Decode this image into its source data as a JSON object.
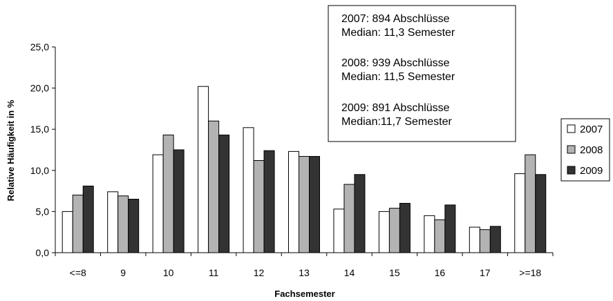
{
  "chart_data": {
    "type": "bar",
    "xlabel": "Fachsemester",
    "ylabel": "Relative Häufigkeit in %",
    "categories": [
      "<=8",
      "9",
      "10",
      "11",
      "12",
      "13",
      "14",
      "15",
      "16",
      "17",
      ">=18"
    ],
    "series": [
      {
        "name": "2007",
        "color": "#ffffff",
        "values": [
          5.0,
          7.4,
          11.9,
          20.2,
          15.2,
          12.3,
          5.3,
          5.0,
          4.5,
          3.1,
          9.6
        ]
      },
      {
        "name": "2008",
        "color": "#b3b3b3",
        "values": [
          7.0,
          6.9,
          14.3,
          16.0,
          11.2,
          11.7,
          8.3,
          5.4,
          4.0,
          2.8,
          11.9
        ]
      },
      {
        "name": "2009",
        "color": "#333333",
        "values": [
          8.1,
          6.5,
          12.5,
          14.3,
          12.4,
          11.7,
          9.5,
          6.0,
          5.8,
          3.2,
          9.5
        ]
      }
    ],
    "ylim": [
      0,
      25
    ],
    "yticks": [
      "0,0",
      "5,0",
      "10,0",
      "15,0",
      "20,0",
      "25,0"
    ],
    "legend": "right",
    "grid": false,
    "annotation": {
      "lines": [
        "2007: 894 Abschlüsse",
        "Median: 11,3 Semester",
        "2008: 939 Abschlüsse",
        "Median: 11,5 Semester",
        "2009: 891 Abschlüsse",
        "Median:11,7 Semester"
      ]
    }
  }
}
